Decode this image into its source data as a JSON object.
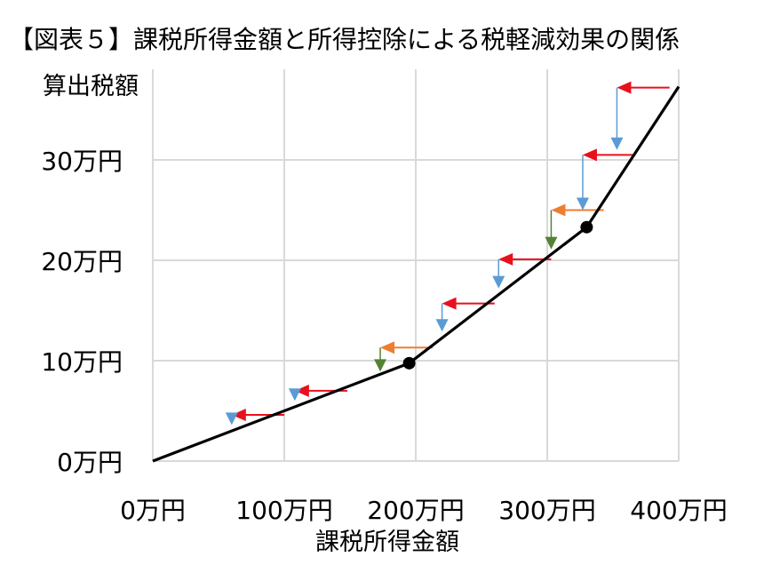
{
  "chart_data": {
    "type": "line",
    "title": "【図表５】課税所得金額と所得控除による税軽減効果の関係",
    "xlabel": "課税所得金額",
    "ylabel": "算出税額",
    "x_unit": "万円",
    "y_unit": "万円",
    "xlim": [
      0,
      400
    ],
    "ylim": [
      0,
      37
    ],
    "x_ticks": [
      0,
      100,
      200,
      300,
      400
    ],
    "y_ticks": [
      0,
      10,
      20,
      30
    ],
    "x_tick_labels": [
      "0万円",
      "100万円",
      "200万円",
      "300万円",
      "400万円"
    ],
    "y_tick_labels": [
      "0万円",
      "10万円",
      "20万円",
      "30万円"
    ],
    "grid": true,
    "series": [
      {
        "values": [
          [
            0,
            0
          ],
          [
            195,
            9.75
          ],
          [
            330,
            23.3
          ],
          [
            400,
            37.3
          ]
        ]
      }
    ],
    "kink_points": [
      [
        195,
        9.75
      ],
      [
        330,
        23.3
      ]
    ],
    "deduction_arrows": [
      {
        "x_from": 100,
        "x_to": 60,
        "y_base": 4.6,
        "y_tax": 3.6,
        "h_color": "#e8101c",
        "v_color": "#5b9bd5"
      },
      {
        "x_from": 148,
        "x_to": 108,
        "y_base": 7.0,
        "y_tax": 6.0,
        "h_color": "#e8101c",
        "v_color": "#5b9bd5"
      },
      {
        "x_from": 213,
        "x_to": 173,
        "y_base": 11.3,
        "y_tax": 8.9,
        "h_color": "#ed7d31",
        "v_color": "#548235"
      },
      {
        "x_from": 260,
        "x_to": 220,
        "y_base": 15.7,
        "y_tax": 12.9,
        "h_color": "#e8101c",
        "v_color": "#5b9bd5"
      },
      {
        "x_from": 303,
        "x_to": 263,
        "y_base": 20.1,
        "y_tax": 17.2,
        "h_color": "#e8101c",
        "v_color": "#5b9bd5"
      },
      {
        "x_from": 343,
        "x_to": 303,
        "y_base": 25.0,
        "y_tax": 21.1,
        "h_color": "#ed7d31",
        "v_color": "#548235"
      },
      {
        "x_from": 367,
        "x_to": 327,
        "y_base": 30.5,
        "y_tax": 25.0,
        "h_color": "#e8101c",
        "v_color": "#5b9bd5"
      },
      {
        "x_from": 393,
        "x_to": 353,
        "y_base": 37.2,
        "y_tax": 31.0,
        "h_color": "#e8101c",
        "v_color": "#5b9bd5"
      }
    ],
    "colors": {
      "line": "#000000",
      "grid": "#d9d9d9"
    }
  }
}
